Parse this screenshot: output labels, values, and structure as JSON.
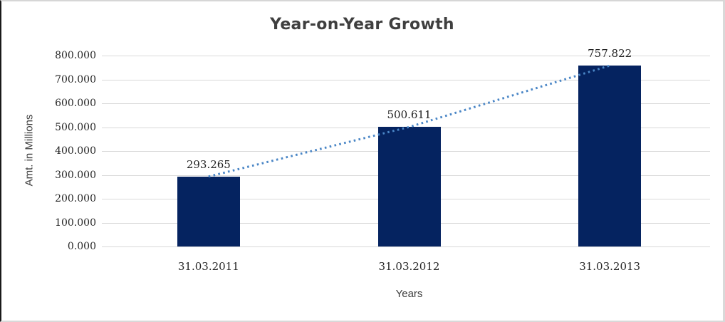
{
  "chart_data": {
    "type": "bar",
    "title": "Year-on-Year Growth",
    "xlabel": "Years",
    "ylabel": "Amt. in Millions",
    "categories": [
      "31.03.2011",
      "31.03.2012",
      "31.03.2013"
    ],
    "values": [
      293.265,
      500.611,
      757.822
    ],
    "data_labels": [
      "293.265",
      "500.611",
      "757.822"
    ],
    "y_ticks": [
      "0.000",
      "100.000",
      "200.000",
      "300.000",
      "400.000",
      "500.000",
      "600.000",
      "700.000",
      "800.000"
    ],
    "ylim": [
      0,
      800
    ],
    "grid": true,
    "legend_position": "none",
    "trendline": {
      "style": "dotted",
      "connects": "bar-tops",
      "color": "#4A86C6"
    },
    "colors": {
      "bar_fill": "#052360",
      "trendline": "#4A86C6",
      "gridline": "#D9D9D9",
      "title_text": "#3F3F3F",
      "axis_title_text": "#3D3D3D",
      "tick_text": "#262626",
      "background": "#FFFFFF"
    }
  }
}
